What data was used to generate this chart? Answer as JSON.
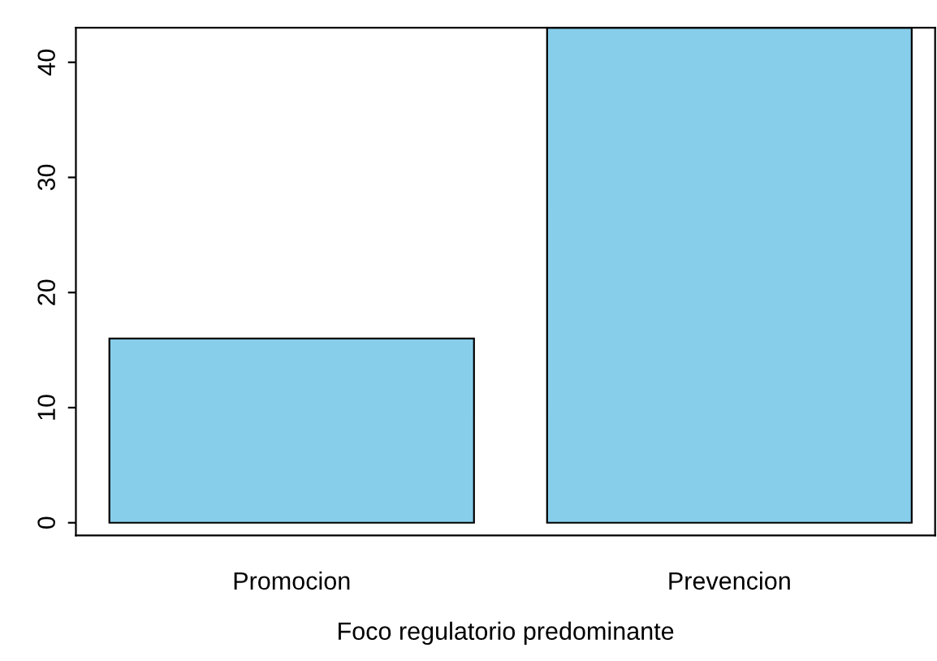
{
  "chart_data": {
    "type": "bar",
    "xlabel": "Foco regulatorio predominante",
    "categories": [
      "Promocion",
      "Prevencion"
    ],
    "values": [
      16,
      43
    ],
    "color": "#87ceeb",
    "ylim": [
      -1.1,
      43
    ],
    "yticks": [
      0,
      10,
      20,
      30,
      40
    ],
    "grid": false
  }
}
